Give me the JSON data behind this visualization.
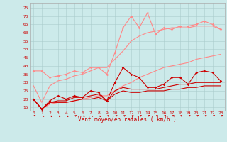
{
  "bg_color": "#cceaea",
  "grid_color": "#aacccc",
  "x_values": [
    0,
    1,
    2,
    3,
    4,
    5,
    6,
    7,
    8,
    9,
    10,
    11,
    12,
    13,
    14,
    15,
    16,
    17,
    18,
    19,
    20,
    21,
    22,
    23
  ],
  "xlabel": "Vent moyen/en rafales ( km/h )",
  "ylim": [
    13,
    78
  ],
  "yticks": [
    15,
    20,
    25,
    30,
    35,
    40,
    45,
    50,
    55,
    60,
    65,
    70,
    75
  ],
  "xlim": [
    -0.5,
    23.5
  ],
  "line_light1": {
    "y": [
      37,
      37,
      33,
      34,
      35,
      37,
      36,
      39,
      39,
      35,
      48,
      63,
      70,
      63,
      72,
      59,
      63,
      62,
      64,
      64,
      65,
      67,
      65,
      62
    ],
    "color": "#ff8888",
    "lw": 0.8,
    "marker": "D",
    "ms": 1.8
  },
  "line_light2": {
    "y": [
      28,
      18,
      28,
      31,
      32,
      34,
      35,
      37,
      39,
      39,
      44,
      49,
      55,
      58,
      60,
      61,
      62,
      63,
      63,
      63,
      64,
      64,
      64,
      62
    ],
    "color": "#ff8888",
    "lw": 0.8
  },
  "line_light3": {
    "y": [
      20,
      14,
      17,
      18,
      18,
      19,
      20,
      21,
      22,
      22,
      25,
      28,
      30,
      33,
      35,
      37,
      39,
      40,
      41,
      42,
      44,
      45,
      46,
      47
    ],
    "color": "#ff8888",
    "lw": 0.8
  },
  "line_dark1": {
    "y": [
      20,
      14,
      19,
      22,
      20,
      22,
      21,
      25,
      24,
      19,
      30,
      39,
      35,
      33,
      27,
      27,
      29,
      33,
      33,
      29,
      36,
      37,
      36,
      31
    ],
    "color": "#cc0000",
    "lw": 0.8,
    "marker": "D",
    "ms": 1.8
  },
  "line_dark2": {
    "y": [
      20,
      14,
      18,
      19,
      19,
      21,
      21,
      22,
      23,
      19,
      25,
      27,
      26,
      26,
      26,
      26,
      27,
      28,
      29,
      29,
      30,
      30,
      30,
      30
    ],
    "color": "#cc0000",
    "lw": 0.8
  },
  "line_dark3": {
    "y": [
      20,
      14,
      18,
      18,
      18,
      19,
      20,
      20,
      21,
      19,
      23,
      25,
      24,
      24,
      25,
      25,
      25,
      26,
      26,
      27,
      27,
      28,
      28,
      28
    ],
    "color": "#cc0000",
    "lw": 0.8
  },
  "arrow_color": "#cc0000",
  "arrow_angles": [
    45,
    80,
    80,
    80,
    80,
    60,
    80,
    80,
    80,
    60,
    60,
    60,
    60,
    55,
    55,
    55,
    55,
    55,
    55,
    55,
    55,
    55,
    55,
    55
  ],
  "tick_fontsize": 4.5,
  "label_fontsize": 5.5
}
